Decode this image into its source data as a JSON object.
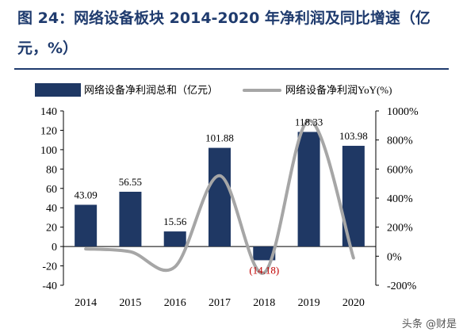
{
  "figure": {
    "title": "图 24：网络设备板块 2014-2020 年净利润及同比增速（亿元，%）"
  },
  "watermark": "头条 @财是",
  "chart_data": {
    "type": "bar",
    "categories": [
      "2014",
      "2015",
      "2016",
      "2017",
      "2018",
      "2019",
      "2020"
    ],
    "series": [
      {
        "name": "网络设备净利润总和（亿元）",
        "type": "bar",
        "axis": "left",
        "values": [
          43.09,
          56.55,
          15.56,
          101.88,
          -14.18,
          118.33,
          103.98
        ],
        "labels": [
          "43.09",
          "56.55",
          "15.56",
          "101.88",
          "(14.18)",
          "118.33",
          "103.98"
        ]
      },
      {
        "name": "网络设备净利润YoY(%)",
        "type": "line",
        "axis": "right",
        "values": [
          50,
          31,
          -73,
          554,
          -114,
          934,
          -12
        ]
      }
    ],
    "y_left": {
      "min": -40,
      "max": 140,
      "ticks": [
        -40,
        -20,
        0,
        20,
        40,
        60,
        80,
        100,
        120,
        140
      ]
    },
    "y_right": {
      "min": -200,
      "max": 1000,
      "ticks": [
        "-200%",
        "0%",
        "200%",
        "400%",
        "600%",
        "800%",
        "1000%"
      ]
    },
    "colors": {
      "bar": "#1f3864",
      "line": "#a6a6a6",
      "negative_label": "#c00000",
      "title": "#1f3b6e"
    },
    "legend": "top",
    "grid": false
  }
}
